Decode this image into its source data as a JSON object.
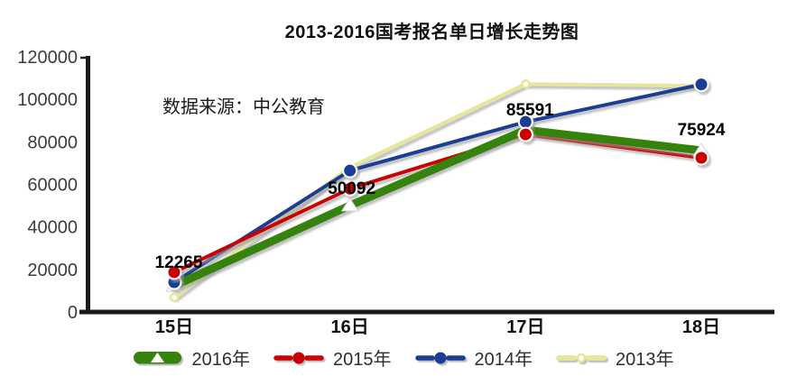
{
  "title": "2013-2016国考报名单日增长走势图",
  "source_note": "数据来源：中公教育",
  "chart_data": {
    "type": "line",
    "categories": [
      "15日",
      "16日",
      "17日",
      "18日"
    ],
    "series": [
      {
        "name": "2016年",
        "values": [
          12265,
          50092,
          85591,
          75924
        ],
        "color": "#35830d",
        "marker": "triangle",
        "width": 9
      },
      {
        "name": "2015年",
        "values": [
          18700,
          58000,
          83500,
          72500
        ],
        "color": "#cc0000",
        "marker": "circle",
        "width": 4
      },
      {
        "name": "2014年",
        "values": [
          14000,
          66500,
          89400,
          107000
        ],
        "color": "#1b3e94",
        "marker": "circle",
        "width": 4
      },
      {
        "name": "2013年",
        "values": [
          6800,
          68000,
          107200,
          106400
        ],
        "color": "#e7e79b",
        "marker": "ring",
        "width": 4
      }
    ],
    "ylim": [
      0,
      120000
    ],
    "y_ticks": [
      "0",
      "20000",
      "40000",
      "60000",
      "80000",
      "100000",
      "120000"
    ],
    "grid": false,
    "legend_position": "bottom",
    "point_labels": {
      "series": "2016年",
      "values": [
        "12265",
        "50092",
        "85591",
        "75924"
      ]
    }
  }
}
